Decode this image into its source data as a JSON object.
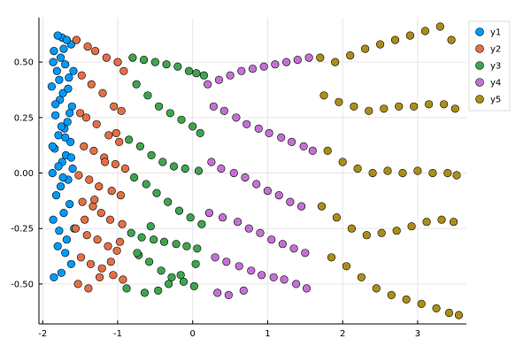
{
  "chart_data": {
    "type": "scatter",
    "title": "",
    "xlabel": "",
    "ylabel": "",
    "xlim": [
      -2.05,
      3.65
    ],
    "ylim": [
      -0.68,
      0.7
    ],
    "xticks": [
      -2,
      -1,
      0,
      1,
      2,
      3
    ],
    "yticks": [
      -0.5,
      -0.25,
      0.0,
      0.25,
      0.5
    ],
    "xtick_labels": [
      "-2",
      "-1",
      "0",
      "1",
      "2",
      "3"
    ],
    "ytick_labels": [
      "-0.50",
      "-0.25",
      "0.00",
      "0.25",
      "0.50"
    ],
    "grid": true,
    "legend_position": "top-right",
    "series": [
      {
        "name": "y1",
        "color": "#009AFA",
        "x": [
          -1.85,
          -1.75,
          -1.62,
          -1.7,
          -1.8,
          -1.68,
          -1.78,
          -1.86,
          -1.58,
          -1.72,
          -1.64,
          -1.82,
          -1.76,
          -1.66,
          -1.87,
          -1.6,
          -1.74,
          -1.69,
          -1.84,
          -1.63,
          -1.79,
          -1.71,
          -1.67,
          -1.83,
          -1.61,
          -1.77,
          -1.73,
          -1.88,
          -1.65,
          -1.81,
          -1.7,
          -1.76,
          -1.85,
          -1.62,
          -1.74,
          -1.8,
          -1.68,
          -1.72,
          -1.86,
          -1.59,
          -1.78,
          -1.66,
          -1.83,
          -1.64,
          -1.75,
          -1.7,
          -1.87,
          -1.62,
          -1.79,
          -1.73
        ],
        "y": [
          -0.47,
          -0.45,
          -0.41,
          -0.36,
          -0.33,
          -0.3,
          -0.26,
          -0.21,
          -0.25,
          -0.18,
          -0.14,
          -0.1,
          -0.06,
          -0.03,
          0.0,
          0.02,
          0.05,
          0.08,
          0.11,
          0.14,
          0.17,
          0.2,
          0.23,
          0.26,
          0.3,
          0.33,
          0.36,
          0.39,
          0.43,
          0.46,
          0.49,
          0.52,
          0.55,
          0.58,
          0.61,
          0.62,
          0.6,
          0.56,
          0.5,
          0.46,
          0.42,
          0.38,
          0.31,
          0.27,
          0.21,
          0.16,
          0.12,
          0.07,
          0.03,
          -0.02
        ]
      },
      {
        "name": "y2",
        "color": "#E26F46",
        "x": [
          -1.55,
          -1.4,
          -1.3,
          -1.15,
          -1.0,
          -0.92,
          -1.48,
          -1.35,
          -1.2,
          -1.05,
          -0.95,
          -1.5,
          -1.42,
          -1.28,
          -1.12,
          -0.98,
          -1.45,
          -1.32,
          -1.18,
          -1.03,
          -0.9,
          -1.52,
          -1.38,
          -1.25,
          -1.08,
          -0.96,
          -1.47,
          -1.33,
          -1.22,
          -1.1,
          -0.94,
          -1.56,
          -1.41,
          -1.27,
          -1.13,
          -1.01,
          -1.49,
          -1.36,
          -1.21,
          -1.06,
          -0.93,
          -1.53,
          -1.39,
          -1.24,
          -1.09,
          -0.97,
          -1.44,
          -1.31,
          -1.17,
          -1.02
        ],
        "y": [
          0.6,
          0.57,
          0.55,
          0.52,
          0.5,
          0.46,
          0.44,
          0.4,
          0.36,
          0.3,
          0.28,
          0.27,
          0.25,
          0.22,
          0.17,
          0.14,
          0.12,
          0.1,
          0.07,
          0.04,
          0.02,
          -0.01,
          -0.03,
          -0.06,
          -0.08,
          -0.1,
          -0.13,
          -0.15,
          -0.18,
          -0.21,
          -0.23,
          -0.25,
          -0.28,
          -0.3,
          -0.33,
          -0.35,
          -0.38,
          -0.41,
          -0.43,
          -0.46,
          -0.48,
          -0.5,
          -0.52,
          -0.47,
          -0.4,
          -0.31,
          -0.21,
          -0.12,
          0.05,
          0.18
        ]
      },
      {
        "name": "y3",
        "color": "#3EA44E",
        "x": [
          -0.8,
          -0.65,
          -0.5,
          -0.35,
          -0.2,
          -0.05,
          0.05,
          0.15,
          -0.75,
          -0.6,
          -0.45,
          -0.3,
          -0.15,
          0.0,
          0.1,
          -0.85,
          -0.7,
          -0.55,
          -0.4,
          -0.25,
          -0.1,
          0.08,
          -0.78,
          -0.62,
          -0.48,
          -0.33,
          -0.18,
          -0.03,
          0.12,
          -0.82,
          -0.68,
          -0.52,
          -0.38,
          -0.22,
          -0.08,
          0.06,
          -0.72,
          -0.58,
          -0.42,
          -0.28,
          -0.12,
          0.02,
          -0.88,
          -0.64,
          -0.46,
          -0.32,
          -0.16,
          0.04,
          -0.74,
          -0.56
        ],
        "y": [
          0.52,
          0.51,
          0.5,
          0.49,
          0.48,
          0.46,
          0.45,
          0.44,
          0.4,
          0.35,
          0.3,
          0.27,
          0.24,
          0.21,
          0.18,
          0.15,
          0.12,
          0.08,
          0.05,
          0.03,
          0.02,
          0.01,
          -0.02,
          -0.05,
          -0.09,
          -0.13,
          -0.17,
          -0.2,
          -0.23,
          -0.27,
          -0.29,
          -0.3,
          -0.31,
          -0.32,
          -0.33,
          -0.34,
          -0.37,
          -0.4,
          -0.44,
          -0.47,
          -0.49,
          -0.51,
          -0.52,
          -0.54,
          -0.53,
          -0.5,
          -0.46,
          -0.41,
          -0.36,
          -0.24
        ]
      },
      {
        "name": "y4",
        "color": "#C271D2",
        "x": [
          0.2,
          0.35,
          0.5,
          0.65,
          0.8,
          0.95,
          1.1,
          1.25,
          1.4,
          1.55,
          0.28,
          0.42,
          0.58,
          0.72,
          0.88,
          1.02,
          1.18,
          1.32,
          1.48,
          1.6,
          0.25,
          0.38,
          0.55,
          0.7,
          0.85,
          1.0,
          1.15,
          1.3,
          1.45,
          0.22,
          0.4,
          0.6,
          0.75,
          0.9,
          1.05,
          1.2,
          1.35,
          1.5,
          0.3,
          0.45,
          0.62,
          0.78,
          0.92,
          1.08,
          1.22,
          1.38,
          1.52,
          0.33,
          0.48,
          0.68
        ],
        "y": [
          0.4,
          0.42,
          0.44,
          0.46,
          0.47,
          0.48,
          0.49,
          0.5,
          0.51,
          0.52,
          0.3,
          0.28,
          0.25,
          0.22,
          0.2,
          0.18,
          0.16,
          0.14,
          0.12,
          0.1,
          0.05,
          0.02,
          0.0,
          -0.02,
          -0.05,
          -0.08,
          -0.1,
          -0.13,
          -0.15,
          -0.18,
          -0.2,
          -0.22,
          -0.25,
          -0.27,
          -0.3,
          -0.32,
          -0.34,
          -0.36,
          -0.38,
          -0.4,
          -0.42,
          -0.44,
          -0.46,
          -0.47,
          -0.48,
          -0.5,
          -0.52,
          -0.54,
          -0.55,
          -0.53
        ]
      },
      {
        "name": "y5",
        "color": "#AC8D18",
        "x": [
          1.7,
          1.9,
          2.1,
          2.3,
          2.5,
          2.7,
          2.9,
          3.1,
          3.3,
          3.45,
          1.75,
          1.95,
          2.15,
          2.35,
          2.55,
          2.75,
          2.95,
          3.15,
          3.35,
          3.5,
          1.8,
          2.0,
          2.2,
          2.4,
          2.6,
          2.8,
          3.0,
          3.2,
          3.4,
          3.52,
          1.72,
          1.92,
          2.12,
          2.32,
          2.52,
          2.72,
          2.92,
          3.12,
          3.32,
          3.48,
          1.85,
          2.05,
          2.25,
          2.45,
          2.65,
          2.85,
          3.05,
          3.25,
          3.42,
          3.55
        ],
        "y": [
          0.52,
          0.5,
          0.53,
          0.56,
          0.58,
          0.6,
          0.62,
          0.64,
          0.66,
          0.6,
          0.35,
          0.32,
          0.3,
          0.28,
          0.29,
          0.3,
          0.3,
          0.31,
          0.31,
          0.29,
          0.1,
          0.05,
          0.02,
          0.0,
          0.01,
          0.0,
          0.01,
          0.0,
          0.0,
          -0.01,
          -0.15,
          -0.2,
          -0.25,
          -0.28,
          -0.27,
          -0.26,
          -0.24,
          -0.22,
          -0.21,
          -0.22,
          -0.38,
          -0.42,
          -0.47,
          -0.52,
          -0.55,
          -0.57,
          -0.59,
          -0.61,
          -0.63,
          -0.64
        ]
      }
    ]
  }
}
